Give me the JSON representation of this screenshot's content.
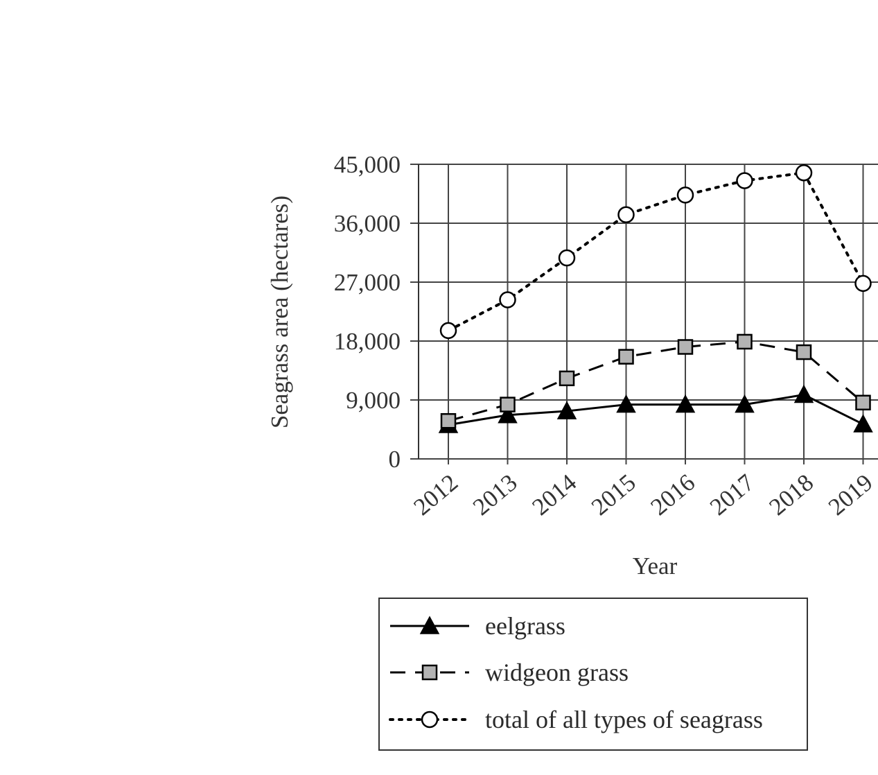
{
  "chart_data": {
    "type": "line",
    "title": "",
    "xlabel": "Year",
    "ylabel": "Seagrass area (hectares)",
    "categories": [
      "2012",
      "2013",
      "2014",
      "2015",
      "2016",
      "2017",
      "2018",
      "2019"
    ],
    "ylim": [
      0,
      45000
    ],
    "yticks": [
      0,
      9000,
      18000,
      27000,
      36000,
      45000
    ],
    "ytick_labels": [
      "0",
      "9,000",
      "18,000",
      "27,000",
      "36,000",
      "45,000"
    ],
    "grid": true,
    "legend_position": "bottom",
    "series": [
      {
        "name": "eelgrass",
        "line_style": "solid",
        "marker": "filled-triangle",
        "color": "#000000",
        "values": [
          5200,
          6700,
          7300,
          8300,
          8300,
          8300,
          9800,
          5300
        ]
      },
      {
        "name": "widgeon grass",
        "line_style": "dashed",
        "marker": "gray-square",
        "color": "#000000",
        "marker_fill": "#b3b3b3",
        "values": [
          5800,
          8300,
          12300,
          15600,
          17100,
          17900,
          16300,
          8600
        ]
      },
      {
        "name": "total of all types of seagrass",
        "line_style": "dotted",
        "marker": "open-circle",
        "color": "#000000",
        "values": [
          19600,
          24300,
          30700,
          37300,
          40300,
          42500,
          43700,
          26800
        ]
      }
    ]
  }
}
